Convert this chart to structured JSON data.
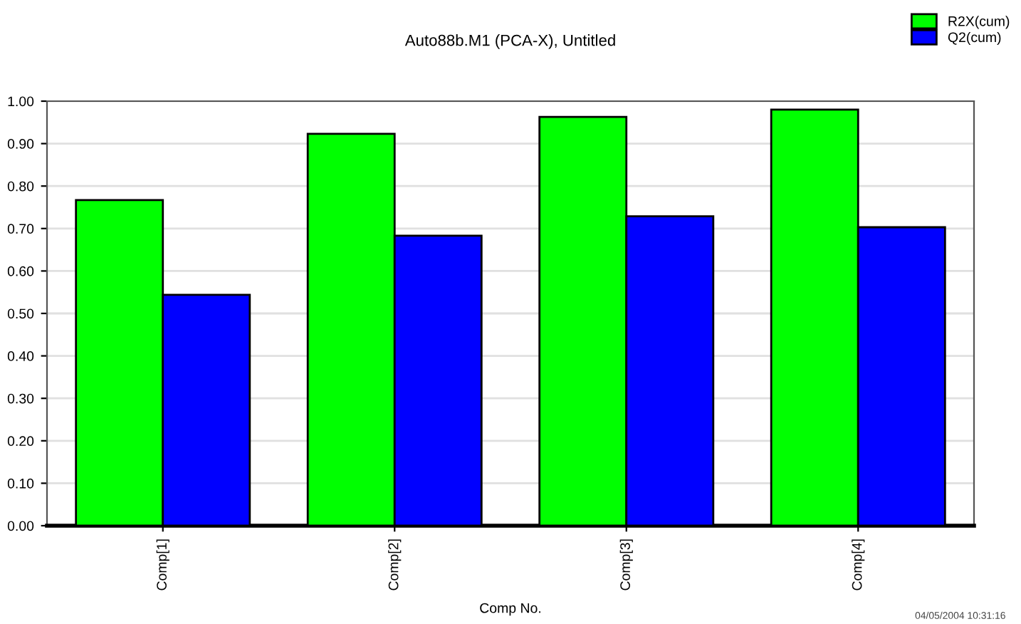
{
  "chart_data": {
    "type": "bar",
    "title": "Auto88b.M1 (PCA-X), Untitled",
    "xlabel": "Comp No.",
    "categories": [
      "Comp[1]",
      "Comp[2]",
      "Comp[3]",
      "Comp[4]"
    ],
    "series": [
      {
        "name": "R2X(cum)",
        "color": "#00ff00",
        "values": [
          0.767,
          0.923,
          0.963,
          0.98
        ]
      },
      {
        "name": "Q2(cum)",
        "color": "#0000ff",
        "values": [
          0.544,
          0.683,
          0.729,
          0.703
        ]
      }
    ],
    "ylim": [
      0,
      1
    ],
    "yticks": [
      {
        "value": 0,
        "label": "0.00"
      },
      {
        "value": 0.1,
        "label": "0.10"
      },
      {
        "value": 0.2,
        "label": "0.20"
      },
      {
        "value": 0.3,
        "label": "0.30"
      },
      {
        "value": 0.4,
        "label": "0.40"
      },
      {
        "value": 0.5,
        "label": "0.50"
      },
      {
        "value": 0.6,
        "label": "0.60"
      },
      {
        "value": 0.7,
        "label": "0.70"
      },
      {
        "value": 0.8,
        "label": "0.80"
      },
      {
        "value": 0.9,
        "label": "0.90"
      },
      {
        "value": 1,
        "label": "1.00"
      }
    ],
    "grid": "y",
    "legend": "top right",
    "annotations": [
      "04/05/2004 10:31:16"
    ]
  }
}
